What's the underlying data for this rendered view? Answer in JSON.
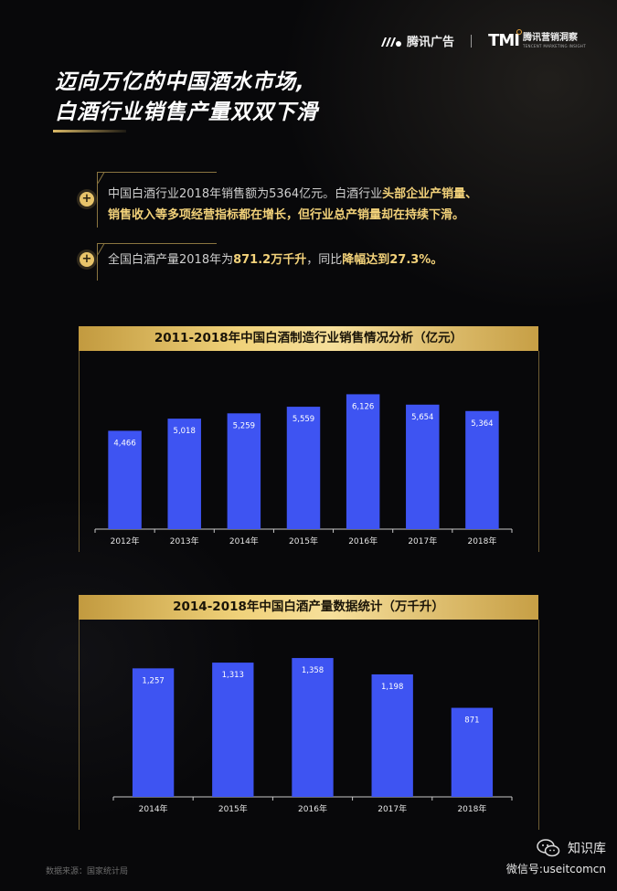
{
  "header": {
    "tencent_ads_label": "腾讯广告",
    "tmi_mark": "TMI",
    "tmi_cn": "腾讯营销洞察",
    "tmi_en": "TENCENT MARKETING INSIGHT"
  },
  "title": {
    "line1": "迈向万亿的中国酒水市场,",
    "line2": "白酒行业销售产量双双下滑"
  },
  "notes": [
    {
      "icon": "plus-icon",
      "line1_normal": "中国白酒行业2018年销售额为5364亿元。白酒行业",
      "line1_highlight": "头部企业产销量、",
      "line2_highlight": "销售收入等多项经营指标都在增长，但行业总产销量却在持续下滑。"
    },
    {
      "icon": "plus-icon",
      "part1": "全国白酒产量2018年为",
      "part2": "871.2万千升",
      "part3": "，同比",
      "part4": "降幅达到27.3%。"
    }
  ],
  "chart_data": [
    {
      "type": "bar",
      "title": "2011-2018年中国白酒制造行业销售情况分析（亿元）",
      "categories": [
        "2012年",
        "2013年",
        "2014年",
        "2015年",
        "2016年",
        "2017年",
        "2018年"
      ],
      "values": [
        4466,
        5018,
        5259,
        5559,
        6126,
        5654,
        5364
      ],
      "value_labels": [
        "4,466",
        "5,018",
        "5,259",
        "5,559",
        "6,126",
        "5,654",
        "5,364"
      ],
      "ylim": [
        0,
        6600
      ],
      "bar_color": "#3e54f2",
      "grid": false
    },
    {
      "type": "bar",
      "title": "2014-2018年中国白酒产量数据统计（万千升）",
      "categories": [
        "2014年",
        "2015年",
        "2016年",
        "2017年",
        "2018年"
      ],
      "values": [
        1257,
        1313,
        1358,
        1198,
        871
      ],
      "value_labels": [
        "1,257",
        "1,313",
        "1,358",
        "1,198",
        "871"
      ],
      "ylim": [
        0,
        1430
      ],
      "bar_color": "#3e54f2",
      "grid": false
    }
  ],
  "source": "数据来源：国家统计局",
  "watermark": {
    "name": "知识库",
    "id": "微信号:useitcomcn"
  }
}
